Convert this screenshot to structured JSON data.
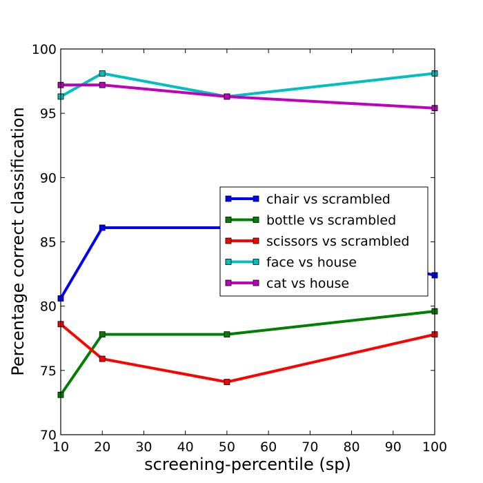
{
  "chart_data": {
    "type": "line",
    "title": "",
    "xlabel": "screening-percentile (sp)",
    "ylabel": "Percentage correct classification",
    "xlim": [
      10,
      100
    ],
    "ylim": [
      70,
      100
    ],
    "xticks": [
      10,
      20,
      30,
      40,
      50,
      60,
      70,
      80,
      90,
      100
    ],
    "yticks": [
      70,
      75,
      80,
      85,
      90,
      95,
      100
    ],
    "grid": false,
    "legend_position": "center-right",
    "x": [
      10,
      20,
      50,
      100
    ],
    "series": [
      {
        "name": "chair vs scrambled",
        "color": "#0000ff",
        "values": [
          80.6,
          86.1,
          86.1,
          82.4
        ]
      },
      {
        "name": "bottle vs scrambled",
        "color": "#008000",
        "values": [
          73.1,
          77.8,
          77.8,
          79.6
        ]
      },
      {
        "name": "scissors vs scrambled",
        "color": "#ff0000",
        "values": [
          78.6,
          75.9,
          74.1,
          77.8
        ]
      },
      {
        "name": "face vs house",
        "color": "#00bfbf",
        "values": [
          96.3,
          98.1,
          96.3,
          98.1
        ]
      },
      {
        "name": "cat vs house",
        "color": "#bf00bf",
        "values": [
          97.2,
          97.2,
          96.3,
          95.4
        ]
      }
    ]
  }
}
